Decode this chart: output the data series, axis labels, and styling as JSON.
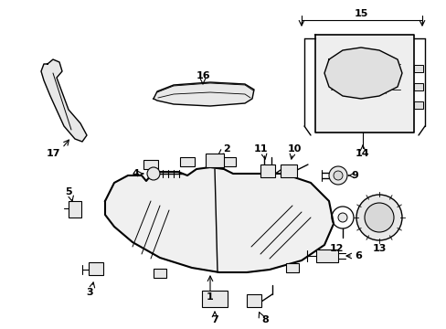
{
  "bg": "#ffffff",
  "lc": "#000000",
  "figsize": [
    4.89,
    3.6
  ],
  "dpi": 100
}
